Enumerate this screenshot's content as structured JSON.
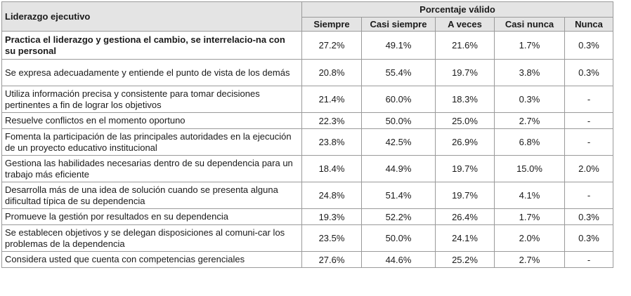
{
  "table": {
    "header": {
      "first": "Liderazgo ejecutivo",
      "group": "Porcentaje válido",
      "columns": [
        "Siempre",
        "Casi siempre",
        "A veces",
        "Casi nunca",
        "Nunca"
      ]
    },
    "rows": [
      {
        "label": "Practica el liderazgo y gestiona el cambio, se interrelacio-na con su personal",
        "values": [
          "27.2%",
          "49.1%",
          "21.6%",
          "1.7%",
          "0.3%"
        ]
      },
      {
        "label": "Se expresa adecuadamente y entiende el punto de vista de los demás",
        "values": [
          "20.8%",
          "55.4%",
          "19.7%",
          "3.8%",
          "0.3%"
        ]
      },
      {
        "label": "Utiliza información precisa y consistente para tomar decisiones pertinentes a fin de lograr los objetivos",
        "values": [
          "21.4%",
          "60.0%",
          "18.3%",
          "0.3%",
          "-"
        ]
      },
      {
        "label": "Resuelve conflictos en el momento oportuno",
        "values": [
          "22.3%",
          "50.0%",
          "25.0%",
          "2.7%",
          "-"
        ]
      },
      {
        "label": "Fomenta la participación de las principales autoridades en la ejecución de un proyecto educativo institucional",
        "values": [
          "23.8%",
          "42.5%",
          "26.9%",
          "6.8%",
          "-"
        ]
      },
      {
        "label": "Gestiona las habilidades necesarias dentro de su dependencia para un trabajo más eficiente",
        "values": [
          "18.4%",
          "44.9%",
          "19.7%",
          "15.0%",
          "2.0%"
        ]
      },
      {
        "label": "Desarrolla más de una idea de solución cuando se presenta alguna dificultad típica de su dependencia",
        "values": [
          "24.8%",
          "51.4%",
          "19.7%",
          "4.1%",
          "-"
        ]
      },
      {
        "label": "Promueve la gestión por resultados en su dependencia",
        "values": [
          "19.3%",
          "52.2%",
          "26.4%",
          "1.7%",
          "0.3%"
        ]
      },
      {
        "label": "Se establecen objetivos y se delegan disposiciones al comuni-car los problemas de la dependencia",
        "values": [
          "23.5%",
          "50.0%",
          "24.1%",
          "2.0%",
          "0.3%"
        ]
      },
      {
        "label": "Considera usted que cuenta con competencias gerenciales",
        "values": [
          "27.6%",
          "44.6%",
          "25.2%",
          "2.7%",
          "-"
        ]
      }
    ]
  }
}
